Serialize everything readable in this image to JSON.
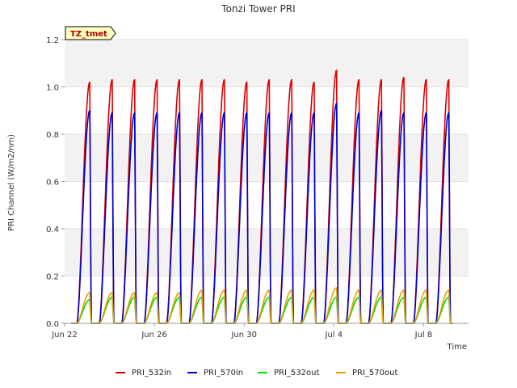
{
  "chart_data": {
    "type": "line",
    "title": "Tonzi Tower PRI",
    "xlabel": "Time",
    "ylabel": "PRI Channel (W/m2/nm)",
    "ylim": [
      0,
      1.2
    ],
    "yticks": [
      "0.0",
      "0.2",
      "0.4",
      "0.6",
      "0.8",
      "1.0",
      "1.2"
    ],
    "xlim_days": [
      0,
      18
    ],
    "xticks": [
      {
        "label": "Jun 22",
        "day": 0
      },
      {
        "label": "Jun 26",
        "day": 4
      },
      {
        "label": "Jun 30",
        "day": 8
      },
      {
        "label": "Jul 4",
        "day": 12
      },
      {
        "label": "Jul 8",
        "day": 16
      }
    ],
    "badge": "TZ_tmet",
    "grid": "horizontal bands",
    "legend_position": "bottom-center",
    "series": [
      {
        "name": "PRI_532in",
        "color": "#dd0000",
        "daily_peaks": [
          1.02,
          1.03,
          1.03,
          1.03,
          1.03,
          1.03,
          1.03,
          1.02,
          1.03,
          1.03,
          1.02,
          1.07,
          1.03,
          1.03,
          1.04,
          1.03,
          1.03
        ]
      },
      {
        "name": "PRI_570in",
        "color": "#0000cc",
        "daily_peaks": [
          0.9,
          0.89,
          0.89,
          0.89,
          0.89,
          0.89,
          0.89,
          0.89,
          0.89,
          0.89,
          0.89,
          0.93,
          0.89,
          0.9,
          0.89,
          0.89,
          0.89
        ]
      },
      {
        "name": "PRI_532out",
        "color": "#00dd00",
        "daily_peaks": [
          0.1,
          0.11,
          0.11,
          0.11,
          0.11,
          0.11,
          0.11,
          0.11,
          0.11,
          0.11,
          0.11,
          0.11,
          0.11,
          0.11,
          0.11,
          0.11,
          0.11
        ]
      },
      {
        "name": "PRI_570out",
        "color": "#e8a000",
        "daily_peaks": [
          0.13,
          0.13,
          0.13,
          0.13,
          0.13,
          0.14,
          0.14,
          0.14,
          0.14,
          0.14,
          0.14,
          0.15,
          0.14,
          0.14,
          0.14,
          0.14,
          0.14
        ]
      }
    ]
  }
}
